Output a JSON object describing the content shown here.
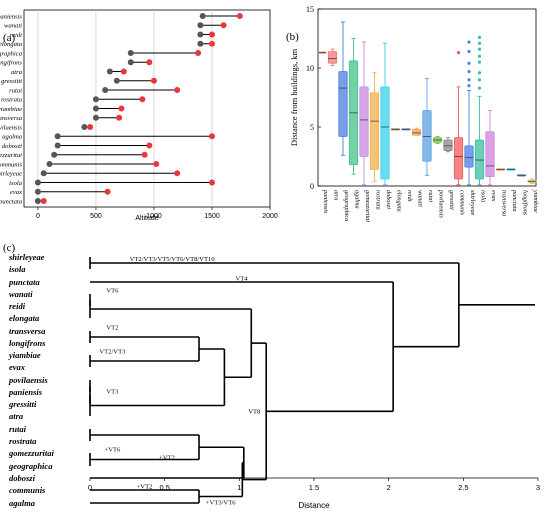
{
  "chart_data": [
    {
      "panel": "(a)",
      "type": "dumbbell",
      "categories": [
        "paniensis",
        "wanati",
        "reidi",
        "elongata",
        "geographica",
        "longifrons",
        "atra",
        "gressitti",
        "rutai",
        "rostrata",
        "yiambiae",
        "transversa",
        "povilaensis",
        "agalma",
        "doboszi",
        "gomezzuritai",
        "communis",
        "shirleyeae",
        "isola",
        "evax",
        "punctata"
      ],
      "min_values": [
        1420,
        1400,
        1400,
        1400,
        800,
        800,
        620,
        680,
        580,
        500,
        500,
        500,
        400,
        170,
        170,
        140,
        100,
        50,
        0,
        0,
        0
      ],
      "max_values": [
        1740,
        1600,
        1500,
        1500,
        1380,
        960,
        740,
        1000,
        1200,
        900,
        720,
        700,
        450,
        1500,
        960,
        920,
        1020,
        1200,
        1500,
        600,
        50
      ],
      "xlabel": "Altitude",
      "xlim": [
        -120,
        2000
      ],
      "xticks": [
        0,
        500,
        1000,
        1500,
        2000
      ],
      "grid": "vertical",
      "min_color": "#555555",
      "max_color": "#e8393a"
    },
    {
      "panel": "(b)",
      "type": "box",
      "categories": [
        "paniensis",
        "atra",
        "geographica",
        "agalma",
        "gomezzuritai",
        "rostrata",
        "doboszi",
        "elongata",
        "reidi",
        "wanati",
        "rutai",
        "povilaensis",
        "gressitti",
        "communis",
        "shirleyeae",
        "isola",
        "evax",
        "transversa",
        "punctata",
        "longifrons",
        "yiambiae"
      ],
      "boxes": [
        {
          "whislo": 11.3,
          "q1": 11.3,
          "med": 11.3,
          "q3": 11.3,
          "whishi": 11.3,
          "color": "#e6a07a",
          "fliers": []
        },
        {
          "whislo": 10.2,
          "q1": 10.4,
          "med": 10.8,
          "q3": 11.4,
          "whishi": 11.6,
          "color": "#f07a78",
          "fliers": []
        },
        {
          "whislo": 2.6,
          "q1": 4.2,
          "med": 8.3,
          "q3": 9.7,
          "whishi": 13.9,
          "color": "#4a7ee0",
          "fliers": []
        },
        {
          "whislo": 1.0,
          "q1": 1.8,
          "med": 6.2,
          "q3": 10.6,
          "whishi": 12.5,
          "color": "#44c08a",
          "fliers": []
        },
        {
          "whislo": 0.1,
          "q1": 2.5,
          "med": 5.6,
          "q3": 8.4,
          "whishi": 12.2,
          "color": "#c68ae0",
          "fliers": []
        },
        {
          "whislo": 0.4,
          "q1": 1.4,
          "med": 5.5,
          "q3": 7.9,
          "whishi": 9.6,
          "color": "#f2b24a",
          "fliers": []
        },
        {
          "whislo": 0.1,
          "q1": 0.6,
          "med": 5.0,
          "q3": 8.4,
          "whishi": 12.1,
          "color": "#38d0ee",
          "fliers": []
        },
        {
          "whislo": 4.8,
          "q1": 4.8,
          "med": 4.8,
          "q3": 4.8,
          "whishi": 4.8,
          "color": "#c0a070",
          "fliers": []
        },
        {
          "whislo": 4.8,
          "q1": 4.8,
          "med": 4.8,
          "q3": 4.8,
          "whishi": 4.8,
          "color": "#8a9ad8",
          "fliers": []
        },
        {
          "whislo": 4.3,
          "q1": 4.3,
          "med": 4.5,
          "q3": 4.8,
          "whishi": 4.9,
          "color": "#f0a050",
          "fliers": []
        },
        {
          "whislo": 0.9,
          "q1": 2.1,
          "med": 4.2,
          "q3": 6.4,
          "whishi": 9.1,
          "color": "#5aa0e0",
          "fliers": []
        },
        {
          "whislo": 3.6,
          "q1": 3.7,
          "med": 3.9,
          "q3": 4.1,
          "whishi": 4.2,
          "color": "#6ec84a",
          "fliers": []
        },
        {
          "whislo": 2.9,
          "q1": 3.0,
          "med": 3.4,
          "q3": 3.9,
          "whishi": 4.1,
          "color": "#888888",
          "fliers": []
        },
        {
          "whislo": 0.1,
          "q1": 0.6,
          "med": 2.5,
          "q3": 4.1,
          "whishi": 8.4,
          "color": "#f05a5a",
          "fliers": [
            11.3
          ]
        },
        {
          "whislo": 0.1,
          "q1": 1.6,
          "med": 2.4,
          "q3": 3.4,
          "whishi": 8.1,
          "color": "#4a7ee0",
          "fliers": [
            8.5,
            9.0,
            9.7,
            10.4,
            11.4,
            12.2
          ]
        },
        {
          "whislo": 0.1,
          "q1": 0.6,
          "med": 2.2,
          "q3": 3.9,
          "whishi": 7.6,
          "color": "#3ac0a0",
          "fliers": [
            8.3,
            9.0,
            9.6,
            10.5,
            11.0,
            11.6,
            12.1,
            12.6
          ]
        },
        {
          "whislo": 0.1,
          "q1": 0.8,
          "med": 1.7,
          "q3": 4.6,
          "whishi": 6.4,
          "color": "#d080e0",
          "fliers": []
        },
        {
          "whislo": 1.4,
          "q1": 1.4,
          "med": 1.4,
          "q3": 1.4,
          "whishi": 1.4,
          "color": "#f0a050",
          "fliers": []
        },
        {
          "whislo": 1.4,
          "q1": 1.4,
          "med": 1.4,
          "q3": 1.4,
          "whishi": 1.4,
          "color": "#38c8ee",
          "fliers": []
        },
        {
          "whislo": 0.9,
          "q1": 0.9,
          "med": 0.9,
          "q3": 0.9,
          "whishi": 0.9,
          "color": "#8a9ad8",
          "fliers": []
        },
        {
          "whislo": 0.2,
          "q1": 0.3,
          "med": 0.4,
          "q3": 0.5,
          "whishi": 0.6,
          "color": "#d8c070",
          "fliers": []
        }
      ],
      "ylabel": "Distance from buildings, km",
      "ylim": [
        0,
        15
      ],
      "yticks": [
        0,
        5,
        10,
        15
      ]
    },
    {
      "panel": "(c)",
      "type": "dendrogram",
      "leaves": [
        "shirleyeae",
        "isola",
        "punctata",
        "wanati",
        "reidi",
        "elongata",
        "transversa",
        "longifrons",
        "yiambiae",
        "evax",
        "povilaensis",
        "paniensis",
        "gressitti",
        "atra",
        "rutai",
        "rostrata",
        "gomezzuritai",
        "geographica",
        "doboszi",
        "communis",
        "agalma"
      ],
      "merges": [
        {
          "left": "shirleyeae",
          "right": "isola",
          "distance": 0.0,
          "label": "VT2/VT3/VT5/VT6/VT8/VT10"
        },
        {
          "left": "wanati",
          "right": "reidi",
          "distance": 0.0,
          "label": "VT6"
        },
        {
          "left": "wanati+reidi",
          "right": "elongata",
          "distance": 0.0,
          "label": ""
        },
        {
          "left": "transversa",
          "right": "longifrons",
          "distance": 0.0,
          "label": "VT2"
        },
        {
          "left": "yiambiae",
          "right": "evax",
          "distance": 0.0,
          "label": "VT2/VT3"
        },
        {
          "left": "transversa+longifrons",
          "right": "yiambiae+evax",
          "distance": 0.73,
          "label": ""
        },
        {
          "left": "povilaensis",
          "right": "paniensis",
          "distance": 0.0,
          "label": ""
        },
        {
          "left": "povilaensis+paniensis",
          "right": "gressitti",
          "distance": 0.0,
          "label": ""
        },
        {
          "left": "povilaensis+paniensis+gressitti",
          "right": "atra",
          "distance": 0.0,
          "label": "VT3"
        },
        {
          "left": "transversa..evax",
          "right": "povilaensis..atra",
          "distance": 0.9,
          "label": ""
        },
        {
          "left": "wanati..elongata",
          "right": "transversa..atra",
          "distance": 1.08,
          "label": ""
        },
        {
          "left": "rutai",
          "right": "rostrata",
          "distance": 0.0,
          "label": ""
        },
        {
          "left": "gomezzuritai",
          "right": "geographica",
          "distance": 0.0,
          "label": "+VT6"
        },
        {
          "left": "rutai+rostrata",
          "right": "gomezzuritai+geographica",
          "distance": 0.73,
          "label": ""
        },
        {
          "left": "rutai..geographica",
          "right": "doboszi",
          "distance": 1.03,
          "label": "+VT2"
        },
        {
          "left": "communis",
          "right": "agalma",
          "distance": 0.73,
          "label": "+VT2"
        },
        {
          "left": "rutai..doboszi",
          "right": "communis+agalma",
          "distance": 1.02,
          "label": "+VT3/VT6"
        },
        {
          "left": "wanati..atra",
          "right": "rutai..agalma",
          "distance": 1.18,
          "label": "VT8"
        },
        {
          "left": "punctata",
          "right": "wanati..agalma",
          "distance": 2.03,
          "label": "VT4"
        },
        {
          "left": "shirleyeae+isola",
          "right": "punctata..agalma",
          "distance": 2.47,
          "label": ""
        }
      ],
      "xlabel": "Distance",
      "xlim": [
        0,
        3.0
      ],
      "xticks": [
        0.0,
        0.5,
        1.0,
        1.5,
        2.0,
        2.5,
        3.0
      ]
    }
  ]
}
